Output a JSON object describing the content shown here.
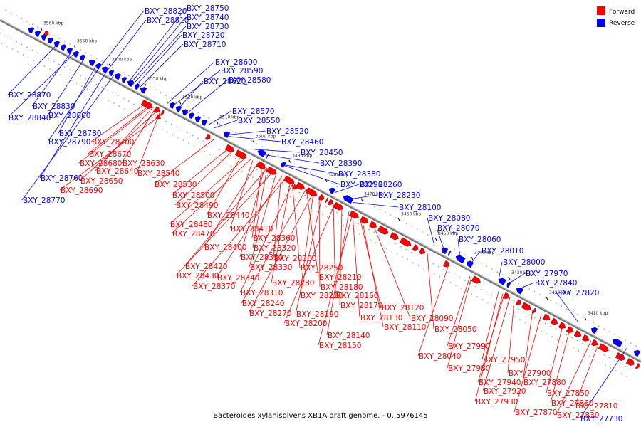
{
  "caption": "Bacteroides xylanisolvens XB1A draft genome. - 0..5976145",
  "legend": [
    {
      "label": "Forward",
      "color": "#ff0000"
    },
    {
      "label": "Reverse",
      "color": "#0000ff"
    }
  ],
  "colors": {
    "forward": "#ff0000",
    "reverse": "#0000ff",
    "backbone": "#888888"
  },
  "ticks": [
    "3560 kbp",
    "3550 kbp",
    "3540 kbp",
    "3530 kbp",
    "3520 kbp",
    "3510 kbp",
    "3500 kbp",
    "3490 kbp",
    "3480 kbp",
    "3470 kbp",
    "3460 kbp",
    "3450 kbp",
    "3440 kbp",
    "3430 kbp",
    "3420 kbp",
    "3410 kbp"
  ],
  "reverse_upper": [
    "BXY_28820",
    "BXY_28810",
    "BXY_28750",
    "BXY_28740",
    "BXY_28730",
    "BXY_28720",
    "BXY_28710",
    "BXY_28600",
    "BXY_28590",
    "BXY_28620",
    "BXY_28580",
    "BXY_28570",
    "BXY_28550",
    "BXY_28520",
    "BXY_28460",
    "BXY_28450",
    "BXY_28390",
    "BXY_28380",
    "BXY_28290",
    "BXY_28260",
    "BXY_28230",
    "BXY_28100",
    "BXY_28080",
    "BXY_28070",
    "BXY_28060",
    "BXY_28010",
    "BXY_28000",
    "BXY_27970",
    "BXY_27840",
    "BXY_27820"
  ],
  "reverse_lower": [
    "BXY_28870",
    "BXY_28830",
    "BXY_28840",
    "BXY_28800",
    "BXY_28780",
    "BXY_28790",
    "BXY_28760",
    "BXY_28770",
    "BXY_27730"
  ],
  "forward_lower": [
    "BXY_28700",
    "BXY_28670",
    "BXY_28680",
    "BXY_28630",
    "BXY_28640",
    "BXY_28540",
    "BXY_28650",
    "BXY_28690",
    "BXY_28530",
    "BXY_28500",
    "BXY_28490",
    "BXY_28440",
    "BXY_28480",
    "BXY_28410",
    "BXY_28470",
    "BXY_28360",
    "BXY_28400",
    "BXY_28320",
    "BXY_28350",
    "BXY_28420",
    "BXY_28330",
    "BXY_28300",
    "BXY_28430",
    "BXY_28340",
    "BXY_28250",
    "BXY_28370",
    "BXY_28280",
    "BXY_28210",
    "BXY_28310",
    "BXY_28220",
    "BXY_28180",
    "BXY_28240",
    "BXY_28160",
    "BXY_28270",
    "BXY_28190",
    "BXY_28170",
    "BXY_28120",
    "BXY_28200",
    "BXY_28130",
    "BXY_28090",
    "BXY_28110",
    "BXY_28140",
    "BXY_28050",
    "BXY_28150",
    "BXY_28040",
    "BXY_27990",
    "BXY_27980",
    "BXY_27950",
    "BXY_27900",
    "BXY_27940",
    "BXY_27880",
    "BXY_27920",
    "BXY_27850",
    "BXY_27930",
    "BXY_27860",
    "BXY_27870",
    "BXY_27810",
    "BXY_27830"
  ]
}
